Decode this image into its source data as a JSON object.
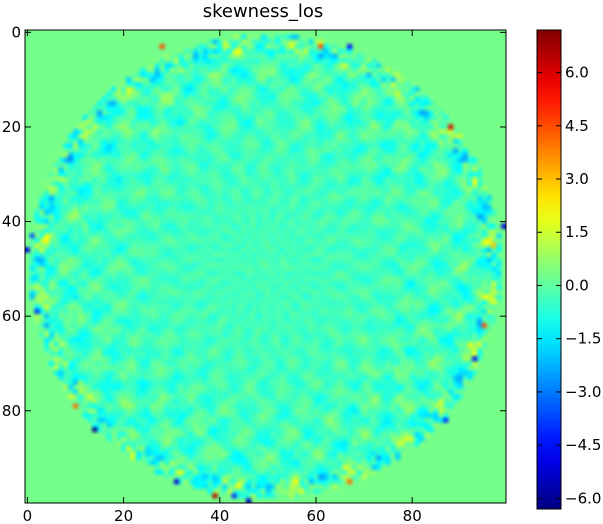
{
  "chart_data": {
    "type": "heatmap",
    "title": "skewness_los",
    "xlabel": "",
    "ylabel": "",
    "x_range": [
      0,
      99
    ],
    "y_range": [
      0,
      99
    ],
    "y_inverted": true,
    "x_ticks": [
      0,
      20,
      40,
      60,
      80
    ],
    "x_tick_labels": [
      "0",
      "20",
      "40",
      "60",
      "80"
    ],
    "y_ticks": [
      0,
      20,
      40,
      60,
      80
    ],
    "y_tick_labels": [
      "0",
      "20",
      "40",
      "60",
      "80"
    ],
    "grid": false,
    "colormap": "jet",
    "color_range": [
      -6.3,
      7.2
    ],
    "background_value": 0.3,
    "disk": {
      "center_x": 49.5,
      "center_y": 49.5,
      "radius": 49
    },
    "colorbar": {
      "ticks": [
        -6.0,
        -4.5,
        -3.0,
        -1.5,
        0.0,
        1.5,
        3.0,
        4.5,
        6.0
      ],
      "tick_labels": [
        "−6.0",
        "−4.5",
        "−3.0",
        "−1.5",
        "0.0",
        "1.5",
        "3.0",
        "4.5",
        "6.0"
      ]
    },
    "notable_points": [
      {
        "x": 39,
        "y": 98,
        "value": 6.5
      },
      {
        "x": 88,
        "y": 20,
        "value": 6.0
      },
      {
        "x": 14,
        "y": 84,
        "value": -6.0
      },
      {
        "x": 99,
        "y": 41,
        "value": -5.0
      },
      {
        "x": 46,
        "y": 99,
        "value": -5.5
      },
      {
        "x": 31,
        "y": 95,
        "value": -5.0
      },
      {
        "x": 61,
        "y": 3,
        "value": 4.5
      },
      {
        "x": 28,
        "y": 3,
        "value": 4.5
      },
      {
        "x": 10,
        "y": 79,
        "value": 4.0
      },
      {
        "x": 95,
        "y": 62,
        "value": 4.5
      },
      {
        "x": 67,
        "y": 95,
        "value": 4.0
      },
      {
        "x": 0,
        "y": 46,
        "value": -5.0
      },
      {
        "x": 93,
        "y": 69,
        "value": -4.5
      },
      {
        "x": 2,
        "y": 59,
        "value": -4.0
      },
      {
        "x": 87,
        "y": 82,
        "value": -4.0
      },
      {
        "x": 67,
        "y": 3,
        "value": -4.5
      },
      {
        "x": 43,
        "y": 98,
        "value": -4.0
      },
      {
        "x": 97,
        "y": 45,
        "value": 3.0
      },
      {
        "x": 1,
        "y": 43,
        "value": -3.5
      }
    ]
  }
}
